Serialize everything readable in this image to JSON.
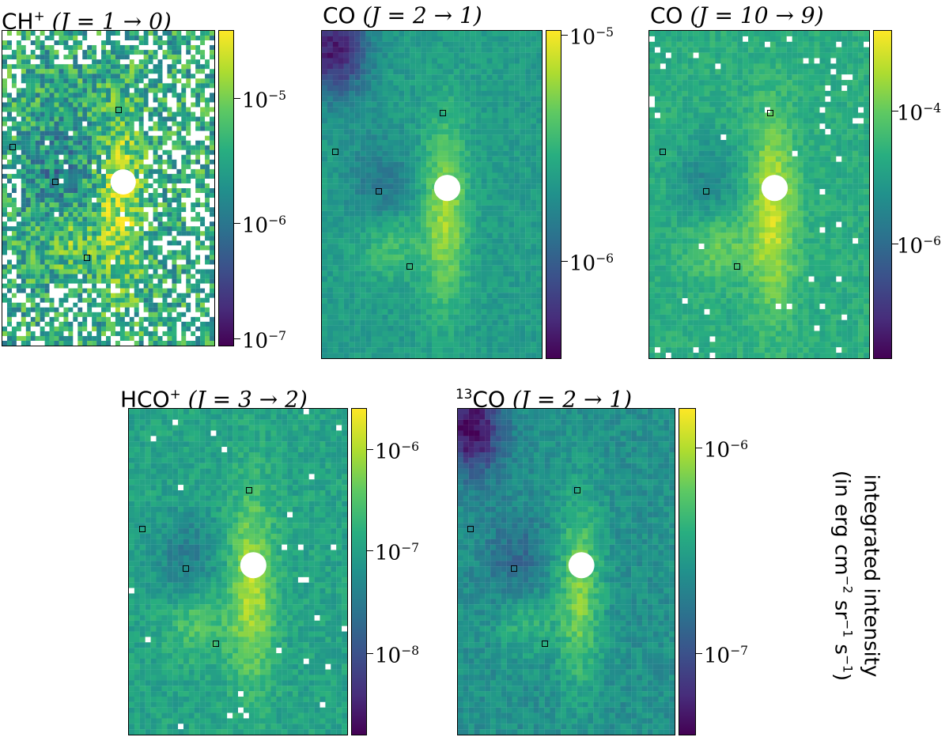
{
  "chart_data": [
    {
      "type": "heatmap",
      "title": {
        "species": "CH",
        "sup": "+",
        "transition": "(J = 1 → 0)"
      },
      "colormap": "viridis",
      "scale": "log",
      "colorbar_range": [
        6e-08,
        3e-05
      ],
      "colorbar_ticks": [
        {
          "base": "10",
          "exp": "−5",
          "value": 1e-05
        },
        {
          "base": "10",
          "exp": "−6",
          "value": 1e-06
        },
        {
          "base": "10",
          "exp": "−7",
          "value": 1e-07
        }
      ]
    },
    {
      "type": "heatmap",
      "title": {
        "species": "CO",
        "sup": "",
        "transition": "(J = 2 → 1)"
      },
      "colormap": "viridis",
      "scale": "log",
      "colorbar_range": [
        3e-07,
        1e-05
      ],
      "colorbar_ticks": [
        {
          "base": "10",
          "exp": "−5",
          "value": 1e-05
        },
        {
          "base": "10",
          "exp": "−6",
          "value": 1e-06
        }
      ]
    },
    {
      "type": "heatmap",
      "title": {
        "species": "CO",
        "sup": "",
        "transition": "(J = 10 → 9)"
      },
      "colormap": "viridis",
      "scale": "log",
      "colorbar_range": [
        1e-07,
        0.001
      ],
      "colorbar_ticks": [
        {
          "base": "10",
          "exp": "−4",
          "value": 0.0001
        },
        {
          "base": "10",
          "exp": "−6",
          "value": 1e-06
        }
      ]
    },
    {
      "type": "heatmap",
      "title": {
        "species": "HCO",
        "sup": "+",
        "transition": "(J = 3 → 2)"
      },
      "colormap": "viridis",
      "scale": "log",
      "colorbar_range": [
        1.5e-09,
        2.5e-06
      ],
      "colorbar_ticks": [
        {
          "base": "10",
          "exp": "−6",
          "value": 1e-06
        },
        {
          "base": "10",
          "exp": "−7",
          "value": 1e-07
        },
        {
          "base": "10",
          "exp": "−8",
          "value": 1e-08
        }
      ]
    },
    {
      "type": "heatmap",
      "title": {
        "species": "CO",
        "pre": "13",
        "sup": "",
        "transition": "(J = 2 → 1)"
      },
      "colormap": "viridis",
      "scale": "log",
      "colorbar_range": [
        4e-08,
        1.5e-06
      ],
      "colorbar_ticks": [
        {
          "base": "10",
          "exp": "−6",
          "value": 1e-06
        },
        {
          "base": "10",
          "exp": "−7",
          "value": 1e-07
        }
      ]
    }
  ],
  "colorbar_label": {
    "line1": "integrated intensity",
    "line2_pre": "(in erg cm",
    "line2_sup1": "−2",
    "line2_mid": " sr",
    "line2_sup2": "−1",
    "line2_mid2": " s",
    "line2_sup3": "−1",
    "line2_post": ")"
  },
  "colors": {
    "low": "#440154",
    "high": "#fde725",
    "masked": "#ffffff",
    "marker": "#000000"
  }
}
